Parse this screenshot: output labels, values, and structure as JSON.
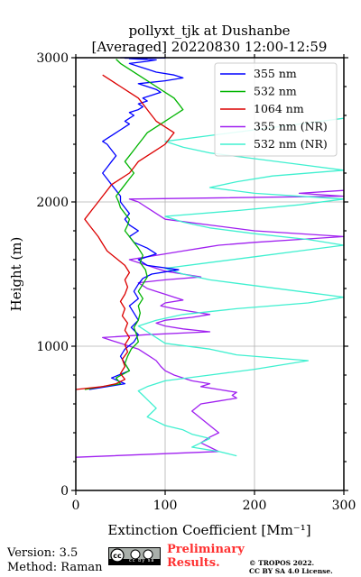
{
  "chart_data": {
    "type": "line",
    "title_line1": "pollyxt_tjk at Dushanbe",
    "title_line2": "[Averaged] 20220830 12:00-12:59",
    "xlabel": "Extinction Coefficient [Mm⁻¹]",
    "ylabel": "Height (m)",
    "xlim": [
      0,
      300
    ],
    "ylim": [
      0,
      3000
    ],
    "x_ticks": [
      0,
      100,
      200,
      300
    ],
    "y_ticks": [
      0,
      1000,
      2000,
      3000
    ],
    "grid": true,
    "legend_position": "upper-right",
    "series": [
      {
        "name": "355 nm",
        "color": "#0000ff",
        "x": [
          15,
          55,
          40,
          60,
          55,
          50,
          55,
          65,
          70,
          62,
          70,
          65,
          60,
          70,
          65,
          70,
          75,
          85,
          115,
          80,
          70,
          90,
          80,
          65,
          60,
          70,
          60,
          55,
          60,
          55,
          50,
          50,
          45,
          40,
          35,
          30,
          35,
          40,
          45,
          40,
          35,
          30,
          35,
          40,
          45,
          50,
          55,
          60,
          55,
          60,
          65,
          60,
          70,
          75,
          70,
          80,
          75,
          85,
          95,
          90,
          80,
          70,
          100,
          120,
          110,
          90,
          80,
          70,
          60,
          80,
          90,
          70,
          60,
          80,
          70,
          55,
          100,
          70,
          60,
          90,
          80,
          70,
          50,
          80
        ],
        "y": [
          700,
          740,
          780,
          830,
          880,
          930,
          980,
          1030,
          1080,
          1130,
          1180,
          1230,
          1280,
          1330,
          1380,
          1430,
          1470,
          1500,
          1530,
          1560,
          1600,
          1640,
          1680,
          1720,
          1760,
          1800,
          1840,
          1880,
          1920,
          1960,
          2000,
          2040,
          2080,
          2120,
          2160,
          2200,
          2240,
          2280,
          2320,
          2360,
          2400,
          2420,
          2440,
          2460,
          2480,
          2500,
          2520,
          2540,
          2560,
          2580,
          2600,
          2620,
          2640,
          2660,
          2680,
          2700,
          2720,
          2740,
          2760,
          2780,
          2800,
          2820,
          2840,
          2860,
          2880,
          2900,
          2920,
          2940,
          2960,
          2975,
          2985,
          2990,
          2993,
          2995,
          2996,
          2997,
          2998,
          2999,
          3000,
          3000,
          3000,
          3000,
          3000,
          3000
        ]
      },
      {
        "name": "532 nm",
        "color": "#00b400",
        "x": [
          10,
          50,
          45,
          60,
          55,
          58,
          62,
          70,
          68,
          65,
          70,
          72,
          70,
          75,
          70,
          75,
          80,
          78,
          72,
          75,
          70,
          65,
          60,
          55,
          58,
          60,
          55,
          50,
          48,
          45,
          50,
          55,
          60,
          65,
          60,
          55,
          60,
          65,
          70,
          75,
          80,
          90,
          100,
          110,
          120,
          115,
          110,
          100,
          90,
          80,
          70,
          60,
          50,
          45
        ],
        "y": [
          700,
          740,
          780,
          830,
          880,
          930,
          980,
          1030,
          1080,
          1130,
          1180,
          1230,
          1280,
          1330,
          1380,
          1430,
          1480,
          1530,
          1580,
          1630,
          1680,
          1720,
          1760,
          1800,
          1840,
          1880,
          1920,
          1960,
          2000,
          2040,
          2080,
          2120,
          2160,
          2200,
          2240,
          2280,
          2320,
          2360,
          2400,
          2440,
          2480,
          2520,
          2560,
          2600,
          2640,
          2680,
          2720,
          2760,
          2800,
          2840,
          2880,
          2920,
          2960,
          2990
        ]
      },
      {
        "name": "1064 nm",
        "color": "#dc0000",
        "x": [
          0,
          30,
          45,
          55,
          50,
          55,
          52,
          58,
          55,
          60,
          55,
          58,
          52,
          55,
          50,
          55,
          58,
          55,
          60,
          55,
          45,
          35,
          30,
          25,
          20,
          15,
          10,
          15,
          20,
          25,
          30,
          35,
          40,
          50,
          60,
          65,
          70,
          80,
          90,
          100,
          105,
          110,
          100,
          90,
          85,
          80,
          75,
          70,
          60,
          50,
          40,
          30
        ],
        "y": [
          700,
          720,
          740,
          770,
          810,
          860,
          910,
          960,
          1010,
          1060,
          1110,
          1160,
          1210,
          1260,
          1310,
          1360,
          1410,
          1460,
          1510,
          1560,
          1610,
          1660,
          1710,
          1760,
          1800,
          1840,
          1880,
          1920,
          1960,
          2000,
          2040,
          2080,
          2120,
          2160,
          2200,
          2240,
          2280,
          2320,
          2360,
          2400,
          2440,
          2480,
          2520,
          2560,
          2600,
          2640,
          2680,
          2720,
          2760,
          2800,
          2840,
          2880
        ]
      },
      {
        "name": "355 nm (NR)",
        "color": "#a020f0",
        "x": [
          0,
          160,
          150,
          140,
          150,
          160,
          150,
          140,
          130,
          140,
          160,
          180,
          175,
          180,
          160,
          140,
          150,
          130,
          120,
          110,
          100,
          95,
          90,
          80,
          70,
          60,
          50,
          40,
          30,
          80,
          150,
          120,
          100,
          90,
          100,
          130,
          150,
          130,
          110,
          95,
          100,
          120,
          110,
          100,
          90,
          80,
          75,
          70,
          100,
          140,
          120,
          100,
          90,
          80,
          70,
          60,
          80,
          100,
          120,
          140,
          160,
          200,
          250,
          300,
          200,
          150,
          100,
          90,
          80,
          70,
          60,
          300,
          250,
          300
        ],
        "y": [
          230,
          270,
          300,
          330,
          370,
          400,
          450,
          500,
          550,
          600,
          620,
          640,
          660,
          680,
          700,
          720,
          740,
          760,
          780,
          800,
          830,
          860,
          900,
          940,
          980,
          1000,
          1020,
          1040,
          1060,
          1080,
          1100,
          1120,
          1140,
          1160,
          1180,
          1200,
          1220,
          1240,
          1260,
          1280,
          1300,
          1320,
          1340,
          1360,
          1380,
          1400,
          1420,
          1440,
          1460,
          1480,
          1500,
          1520,
          1540,
          1560,
          1580,
          1600,
          1620,
          1640,
          1660,
          1680,
          1700,
          1720,
          1740,
          1760,
          1800,
          1840,
          1880,
          1920,
          1960,
          2000,
          2020,
          2040,
          2060,
          2080
        ]
      },
      {
        "name": "532 nm (NR)",
        "color": "#40f0d0",
        "x": [
          180,
          160,
          130,
          140,
          150,
          130,
          120,
          100,
          90,
          80,
          85,
          90,
          85,
          80,
          75,
          70,
          80,
          100,
          150,
          200,
          260,
          180,
          150,
          100,
          90,
          80,
          70,
          90,
          120,
          180,
          260,
          300,
          250,
          200,
          150,
          120,
          100,
          150,
          200,
          250,
          300,
          260,
          200,
          150,
          120,
          100,
          180,
          250,
          300,
          200,
          150,
          180,
          220,
          300,
          250,
          200,
          150,
          120,
          100,
          150,
          200,
          250,
          300
        ],
        "y": [
          240,
          270,
          300,
          330,
          360,
          390,
          420,
          450,
          480,
          510,
          540,
          570,
          600,
          630,
          660,
          690,
          720,
          760,
          800,
          840,
          900,
          940,
          980,
          1020,
          1060,
          1100,
          1140,
          1180,
          1220,
          1260,
          1300,
          1340,
          1380,
          1420,
          1460,
          1500,
          1540,
          1580,
          1620,
          1660,
          1700,
          1740,
          1780,
          1820,
          1860,
          1900,
          1940,
          1980,
          2020,
          2060,
          2100,
          2140,
          2180,
          2220,
          2260,
          2300,
          2340,
          2380,
          2420,
          2460,
          2500,
          2540,
          2580
        ]
      }
    ]
  },
  "footer": {
    "version": "Version: 3.5",
    "method": "Method: Raman",
    "license_badge": "cc by sa",
    "preliminary_line1": "Preliminary",
    "preliminary_line2": "Results.",
    "copyright_line1": "© TROPOS 2022.",
    "copyright_line2": "CC BY SA 4.0 License."
  }
}
